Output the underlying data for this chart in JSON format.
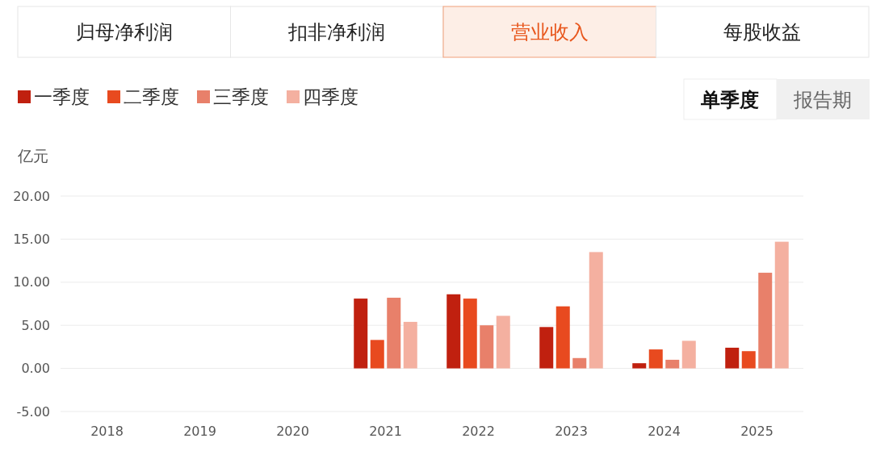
{
  "chart_data": {
    "type": "bar",
    "ylabel": "亿元",
    "categories": [
      "2018",
      "2019",
      "2020",
      "2021",
      "2022",
      "2023",
      "2024",
      "2025"
    ],
    "series": [
      {
        "name": "一季度",
        "color": "#c0200f",
        "values": [
          null,
          null,
          null,
          8.1,
          8.6,
          4.8,
          0.6,
          2.4
        ]
      },
      {
        "name": "二季度",
        "color": "#e84a1f",
        "values": [
          null,
          null,
          null,
          3.3,
          8.1,
          7.2,
          2.2,
          2.0
        ]
      },
      {
        "name": "三季度",
        "color": "#e8806a",
        "values": [
          null,
          null,
          null,
          8.2,
          5.0,
          1.2,
          1.0,
          11.1
        ]
      },
      {
        "name": "四季度",
        "color": "#f4b0a0",
        "values": [
          null,
          null,
          null,
          5.4,
          6.1,
          13.5,
          3.2,
          14.7
        ]
      }
    ],
    "ylim": [
      -5,
      20
    ],
    "yticks": [
      {
        "value": -5,
        "label": "-5.00"
      },
      {
        "value": 0,
        "label": "0.00"
      },
      {
        "value": 5,
        "label": "5.00"
      },
      {
        "value": 10,
        "label": "10.00"
      },
      {
        "value": 15,
        "label": "15.00"
      },
      {
        "value": 20,
        "label": "20.00"
      }
    ],
    "grid": "y",
    "legend": "top left",
    "annotations": [
      "归母净利润",
      "扣非净利润",
      "营业收入",
      "每股收益",
      "单季度",
      "报告期"
    ]
  }
}
